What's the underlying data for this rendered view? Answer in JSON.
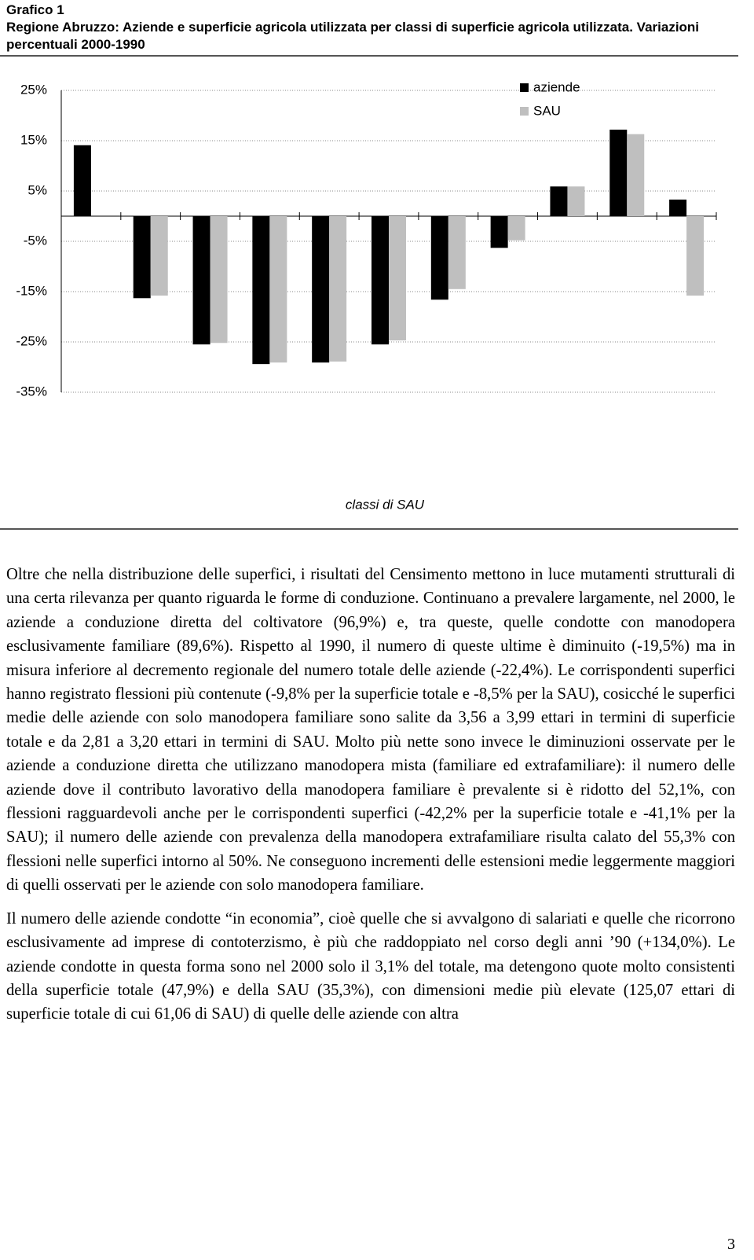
{
  "header": {
    "label": "Grafico 1",
    "title": "Regione Abruzzo:  Aziende e superficie agricola utilizzata per classi di superficie agricola utilizzata. Variazioni percentuali 2000-1990"
  },
  "chart_data": {
    "type": "bar",
    "xlabel": "classi di SAU",
    "categories": [
      null,
      null,
      null,
      null,
      null,
      null,
      null,
      null,
      null,
      null,
      null
    ],
    "series": [
      {
        "name": "aziende",
        "color": "#000000",
        "values": [
          14.1,
          -16.3,
          -25.5,
          -29.4,
          -29.1,
          -25.5,
          -16.6,
          -6.3,
          5.9,
          17.2,
          3.3
        ]
      },
      {
        "name": "SAU",
        "color": "#bfbfbf",
        "values": [
          0,
          -15.8,
          -25.2,
          -29.1,
          -28.9,
          -24.7,
          -14.5,
          -4.8,
          5.9,
          16.3,
          -15.8
        ]
      }
    ],
    "ylim": [
      -35,
      25
    ],
    "yticks": [
      {
        "value": 25,
        "label": "25%"
      },
      {
        "value": 15,
        "label": "15%"
      },
      {
        "value": 5,
        "label": "5%"
      },
      {
        "value": -5,
        "label": "-5%"
      },
      {
        "value": -15,
        "label": "-15%"
      },
      {
        "value": -25,
        "label": "-25%"
      },
      {
        "value": -35,
        "label": "-35%"
      }
    ],
    "grid": true,
    "legend": "top-right"
  },
  "paragraphs": [
    "Oltre che nella distribuzione delle superfici, i risultati del Censimento mettono in luce mutamenti strutturali di una certa rilevanza per quanto riguarda le forme di conduzione. Continuano a prevalere largamente, nel 2000, le aziende a conduzione diretta del coltivatore (96,9%) e, tra queste, quelle condotte con manodopera esclusivamente familiare (89,6%). Rispetto al 1990, il numero di queste ultime è diminuito (-19,5%) ma in misura inferiore al decremento regionale del numero totale delle aziende (-22,4%). Le corrispondenti superfici hanno registrato flessioni più contenute (-9,8% per la superficie totale e -8,5% per la SAU), cosicché le superfici medie delle aziende con solo manodopera familiare sono salite da 3,56 a 3,99 ettari in termini di superficie totale e da 2,81 a 3,20 ettari in termini di SAU. Molto più nette sono invece le diminuzioni osservate per le aziende a conduzione diretta che utilizzano manodopera mista (familiare ed extrafamiliare): il numero delle aziende dove il contributo lavorativo della manodopera familiare è prevalente si è ridotto del 52,1%, con flessioni ragguardevoli anche per le corrispondenti superfici (-42,2% per la superficie totale e -41,1% per la SAU); il numero delle aziende con prevalenza della manodopera extrafamiliare risulta calato del 55,3% con flessioni nelle superfici intorno al 50%. Ne conseguono incrementi delle estensioni medie leggermente maggiori di quelli osservati per le aziende con solo manodopera familiare.",
    "Il numero delle aziende condotte “in economia”, cioè quelle che si avvalgono di salariati e quelle che ricorrono esclusivamente ad imprese di contoterzismo, è più che raddoppiato nel corso degli anni ’90 (+134,0%). Le aziende condotte in questa forma sono nel 2000 solo il 3,1% del totale, ma detengono quote molto consistenti della superficie totale (47,9%) e della SAU (35,3%), con dimensioni medie più elevate (125,07 ettari di superficie totale di cui 61,06 di SAU) di quelle delle aziende con altra"
  ],
  "page_number": "3"
}
